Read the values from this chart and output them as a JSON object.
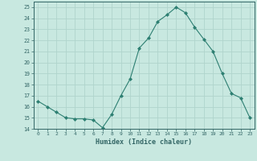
{
  "x": [
    0,
    1,
    2,
    3,
    4,
    5,
    6,
    7,
    8,
    9,
    10,
    11,
    12,
    13,
    14,
    15,
    16,
    17,
    18,
    19,
    20,
    21,
    22,
    23
  ],
  "y": [
    16.5,
    16.0,
    15.5,
    15.0,
    14.9,
    14.9,
    14.8,
    14.1,
    15.3,
    17.0,
    18.5,
    21.3,
    22.2,
    23.7,
    24.3,
    25.0,
    24.5,
    23.2,
    22.1,
    21.0,
    19.0,
    17.2,
    16.8,
    15.0
  ],
  "title": "",
  "xlabel": "Humidex (Indice chaleur)",
  "ylabel": "",
  "xlim": [
    -0.5,
    23.5
  ],
  "ylim": [
    14,
    25.5
  ],
  "yticks": [
    14,
    15,
    16,
    17,
    18,
    19,
    20,
    21,
    22,
    23,
    24,
    25
  ],
  "xticks": [
    0,
    1,
    2,
    3,
    4,
    5,
    6,
    7,
    8,
    9,
    10,
    11,
    12,
    13,
    14,
    15,
    16,
    17,
    18,
    19,
    20,
    21,
    22,
    23
  ],
  "line_color": "#2d7f72",
  "marker": "D",
  "bg_color": "#c8e8e0",
  "grid_color": "#b0d4cc",
  "axis_color": "#336666",
  "label_color": "#336666",
  "tick_color": "#336666"
}
